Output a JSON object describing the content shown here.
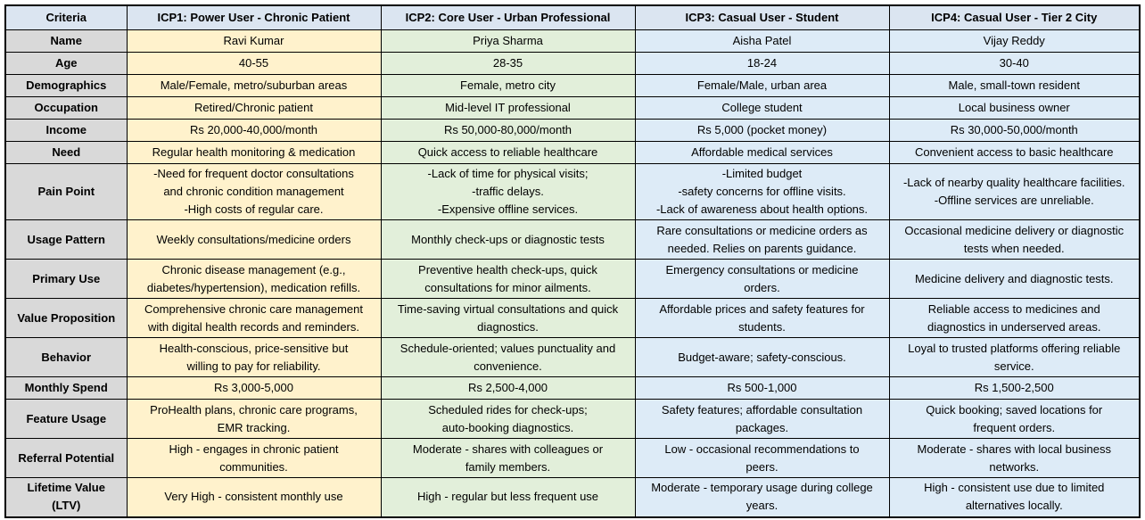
{
  "header": {
    "criteria": "Criteria",
    "columns": [
      "ICP1: Power User - Chronic Patient",
      "ICP2: Core User - Urban Professional",
      "ICP3: Casual User - Student",
      "ICP4: Casual User - Tier 2 City"
    ]
  },
  "rows": [
    {
      "label": "Name",
      "cells": [
        "Ravi Kumar",
        "Priya Sharma",
        "Aisha Patel",
        "Vijay Reddy"
      ]
    },
    {
      "label": "Age",
      "cells": [
        "40-55",
        "28-35",
        "18-24",
        "30-40"
      ]
    },
    {
      "label": "Demographics",
      "cells": [
        "Male/Female, metro/suburban areas",
        "Female, metro city",
        "Female/Male, urban area",
        "Male, small-town resident"
      ]
    },
    {
      "label": "Occupation",
      "cells": [
        "Retired/Chronic patient",
        "Mid-level IT professional",
        "College student",
        "Local business owner"
      ]
    },
    {
      "label": "Income",
      "cells": [
        "Rs 20,000-40,000/month",
        "Rs 50,000-80,000/month",
        "Rs 5,000 (pocket money)",
        "Rs 30,000-50,000/month"
      ]
    },
    {
      "label": "Need",
      "cells": [
        "Regular health monitoring & medication",
        "Quick access to reliable healthcare",
        "Affordable medical services",
        "Convenient access to basic healthcare"
      ]
    },
    {
      "label": "Pain Point",
      "cells": [
        "-Need for frequent doctor consultations\nand chronic condition management\n-High costs of regular care.",
        "-Lack of time for physical visits;\n-traffic delays.\n-Expensive offline services.",
        "-Limited budget\n-safety concerns for offline visits.\n-Lack of awareness about health options.",
        "-Lack of nearby quality healthcare facilities.\n-Offline services are unreliable."
      ]
    },
    {
      "label": "Usage Pattern",
      "cells": [
        "Weekly consultations/medicine orders",
        "Monthly check-ups or diagnostic tests",
        "Rare consultations or medicine orders as\nneeded. Relies on parents guidance.",
        "Occasional medicine delivery or diagnostic\ntests when needed."
      ]
    },
    {
      "label": "Primary Use",
      "cells": [
        "Chronic disease management (e.g.,\ndiabetes/hypertension), medication refills.",
        "Preventive health check-ups, quick\nconsultations for minor ailments.",
        "Emergency consultations or medicine\norders.",
        "Medicine delivery and diagnostic tests."
      ]
    },
    {
      "label": "Value Proposition",
      "cells": [
        "Comprehensive chronic care management\nwith digital health records and reminders.",
        "Time-saving virtual consultations and quick\ndiagnostics.",
        "Affordable prices and safety features for\nstudents.",
        "Reliable access to medicines and\ndiagnostics in underserved areas."
      ]
    },
    {
      "label": "Behavior",
      "cells": [
        "Health-conscious, price-sensitive but\nwilling to pay for reliability.",
        "Schedule-oriented; values punctuality and\nconvenience.",
        "Budget-aware; safety-conscious.",
        "Loyal to trusted platforms offering reliable\nservice."
      ]
    },
    {
      "label": "Monthly Spend",
      "cells": [
        "Rs 3,000-5,000",
        "Rs 2,500-4,000",
        "Rs 500-1,000",
        "Rs 1,500-2,500"
      ]
    },
    {
      "label": "Feature Usage",
      "cells": [
        "ProHealth plans, chronic care programs,\nEMR tracking.",
        "Scheduled rides for check-ups;\nauto-booking diagnostics.",
        "Safety features; affordable consultation\npackages.",
        "Quick booking; saved locations for\nfrequent orders."
      ]
    },
    {
      "label": "Referral Potential",
      "cells": [
        "High - engages in chronic patient\ncommunities.",
        "Moderate - shares with colleagues or\nfamily members.",
        "Low - occasional recommendations to\npeers.",
        "Moderate - shares with local business\nnetworks."
      ]
    },
    {
      "label": "Lifetime Value\n(LTV)",
      "cells": [
        "Very High - consistent monthly use",
        "High - regular but less frequent use",
        "Moderate - temporary usage during college\nyears.",
        "High - consistent use due to limited\nalternatives locally."
      ]
    }
  ]
}
